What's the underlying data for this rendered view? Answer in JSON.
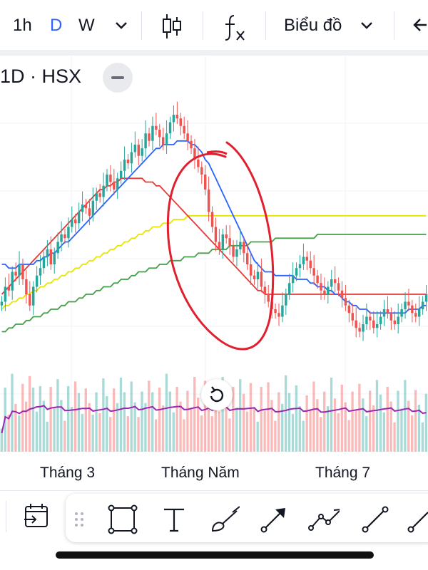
{
  "toolbar": {
    "interval_1h": "1h",
    "interval_d": "D",
    "interval_w": "W",
    "chart_type_label": "Biểu đồ"
  },
  "symbol_label": "1D · HSX",
  "icons": {
    "interval_dropdown": "chevron-down-icon",
    "candles": "candlestick-icon",
    "indicators": "function-fx-icon",
    "chart_menu": "chevron-down-icon",
    "back": "arrow-left-icon",
    "reset": "reset-rotate-icon",
    "date_range": "calendar-range-icon",
    "drag_handle": "drag-dots-icon",
    "rectangle": "rectangle-tool-icon",
    "text": "text-tool-icon",
    "brush": "brush-tool-icon",
    "arrow": "arrow-tool-icon",
    "path": "path-tool-icon",
    "trend_line": "trend-line-tool-icon"
  },
  "colors": {
    "up": "#26a69a",
    "down": "#ef5350",
    "ma_blue": "#2962ff",
    "ma_red": "#e53935",
    "ma_yellow": "#e6e600",
    "ma_green": "#43a047",
    "vol_avg": "#9c27b0",
    "active_interval": "#2962ff",
    "annotation": "#e0202f"
  },
  "chart_data": {
    "type": "candlestick",
    "x_tick_labels": [
      "Tháng 3",
      "Tháng Năm",
      "Tháng 7"
    ],
    "close": [
      48,
      52,
      51,
      56,
      55,
      58,
      54,
      50,
      47,
      52,
      55,
      57,
      60,
      62,
      58,
      61,
      64,
      66,
      65,
      68,
      70,
      69,
      72,
      74,
      73,
      71,
      75,
      77,
      76,
      79,
      82,
      80,
      78,
      81,
      83,
      86,
      85,
      88,
      90,
      87,
      89,
      93,
      91,
      95,
      94,
      92,
      90,
      93,
      96,
      98,
      97,
      95,
      93,
      91,
      89,
      86,
      84,
      82,
      78,
      72,
      68,
      64,
      62,
      66,
      65,
      63,
      60,
      62,
      64,
      61,
      58,
      55,
      54,
      56,
      52,
      50,
      48,
      46,
      45,
      44,
      47,
      50,
      53,
      55,
      57,
      58,
      60,
      59,
      57,
      55,
      53,
      51,
      50,
      52,
      54,
      53,
      51,
      49,
      47,
      45,
      43,
      41,
      40,
      42,
      44,
      43,
      41,
      42,
      44,
      46,
      45,
      43,
      42,
      44,
      46,
      48,
      47,
      45,
      44,
      46,
      48,
      50
    ],
    "ma_short": [
      58,
      58,
      57,
      57,
      57,
      58,
      58,
      58,
      58,
      58,
      59,
      59,
      60,
      60,
      61,
      61,
      62,
      63,
      64,
      64,
      65,
      66,
      67,
      68,
      69,
      70,
      71,
      72,
      73,
      74,
      75,
      76,
      77,
      78,
      79,
      80,
      81,
      82,
      83,
      84,
      85,
      86,
      87,
      88,
      89,
      89,
      90,
      90,
      90,
      90,
      91,
      91,
      91,
      91,
      90,
      90,
      89,
      88,
      86,
      85,
      83,
      81,
      79,
      77,
      75,
      73,
      71,
      69,
      67,
      65,
      63,
      61,
      59,
      58,
      57,
      56,
      56,
      56,
      55,
      55,
      55,
      55,
      55,
      55,
      54,
      54,
      54,
      54,
      53,
      53,
      52,
      52,
      52,
      51,
      51,
      50,
      50,
      49,
      48,
      48,
      47,
      47,
      46,
      46,
      46,
      45,
      45,
      45,
      45,
      45,
      45,
      45,
      45,
      45,
      45,
      45,
      46,
      46,
      46,
      46,
      47,
      47
    ],
    "ma_mid": [
      50,
      51,
      52,
      53,
      54,
      55,
      56,
      57,
      58,
      59,
      60,
      61,
      62,
      63,
      64,
      65,
      66,
      67,
      68,
      69,
      70,
      71,
      72,
      73,
      74,
      75,
      76,
      77,
      78,
      78,
      79,
      79,
      80,
      80,
      81,
      81,
      81,
      81,
      81,
      81,
      81,
      80,
      80,
      80,
      79,
      79,
      78,
      77,
      76,
      75,
      74,
      73,
      72,
      71,
      70,
      69,
      68,
      67,
      66,
      65,
      64,
      63,
      62,
      61,
      60,
      59,
      58,
      57,
      56,
      55,
      54,
      53,
      52,
      51,
      51,
      50,
      50,
      50,
      50,
      50,
      50,
      50,
      50,
      50,
      50,
      50,
      50,
      50,
      50,
      50,
      50,
      50,
      50,
      50,
      50,
      50,
      50,
      50,
      50,
      50,
      50,
      50,
      50,
      50,
      50,
      50,
      50,
      50,
      50,
      50,
      50,
      50,
      50,
      50,
      50,
      50,
      50,
      50,
      50,
      50,
      50,
      50
    ],
    "ma_long": [
      46,
      47,
      47,
      48,
      48,
      49,
      49,
      50,
      50,
      51,
      51,
      52,
      52,
      53,
      53,
      54,
      54,
      55,
      55,
      56,
      56,
      57,
      57,
      58,
      58,
      59,
      59,
      60,
      60,
      61,
      61,
      62,
      62,
      63,
      63,
      64,
      64,
      65,
      65,
      66,
      66,
      67,
      67,
      68,
      68,
      68,
      69,
      69,
      69,
      70,
      70,
      70,
      70,
      71,
      71,
      71,
      71,
      71,
      71,
      71,
      71,
      71,
      71,
      71,
      71,
      71,
      71,
      71,
      71,
      71,
      71,
      71,
      71,
      71,
      71,
      71,
      71,
      71,
      71,
      71,
      71,
      71,
      71,
      71,
      71,
      71,
      71,
      71,
      71,
      71,
      71,
      71,
      71,
      71,
      71,
      71,
      71,
      71,
      71,
      71,
      71,
      71,
      71,
      71,
      71,
      71,
      71,
      71,
      71,
      71,
      71,
      71,
      71,
      71,
      71,
      71,
      71,
      71,
      71,
      71,
      71,
      71
    ],
    "ma_longest": [
      40,
      40,
      41,
      41,
      42,
      42,
      42,
      43,
      43,
      44,
      44,
      44,
      45,
      45,
      46,
      46,
      46,
      47,
      47,
      48,
      48,
      48,
      49,
      49,
      50,
      50,
      50,
      51,
      51,
      52,
      52,
      52,
      53,
      53,
      54,
      54,
      54,
      55,
      55,
      56,
      56,
      56,
      57,
      57,
      57,
      58,
      58,
      58,
      59,
      59,
      59,
      59,
      60,
      60,
      60,
      60,
      61,
      61,
      61,
      61,
      62,
      62,
      62,
      62,
      62,
      63,
      63,
      63,
      63,
      63,
      63,
      64,
      64,
      64,
      64,
      64,
      64,
      64,
      65,
      65,
      65,
      65,
      65,
      65,
      65,
      65,
      65,
      65,
      65,
      65,
      66,
      66,
      66,
      66,
      66,
      66,
      66,
      66,
      66,
      66,
      66,
      66,
      66,
      66,
      66,
      66,
      66,
      66,
      66,
      66,
      66,
      66,
      66,
      66,
      66,
      66,
      66,
      66,
      66,
      66,
      66,
      66
    ],
    "y_range": [
      30,
      110
    ],
    "volume_range": [
      0,
      120
    ]
  }
}
